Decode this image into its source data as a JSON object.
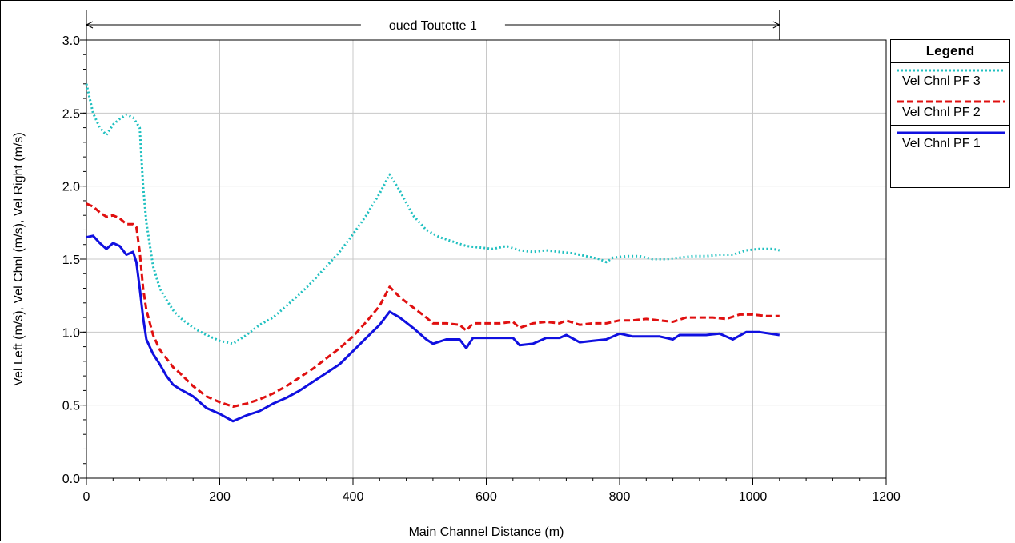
{
  "chart_data": {
    "type": "line",
    "title": "oued Toutette 1",
    "xlabel": "Main Channel Distance (m)",
    "ylabel": "Vel Left (m/s), Vel Chnl (m/s), Vel Right (m/s)",
    "xlim": [
      0,
      1200
    ],
    "ylim": [
      0,
      3.0
    ],
    "xticks": [
      "0",
      "200",
      "400",
      "600",
      "800",
      "1000",
      "1200"
    ],
    "yticks": [
      "0.0",
      "0.5",
      "1.0",
      "1.5",
      "2.0",
      "2.5",
      "3.0"
    ],
    "reach_range": [
      0,
      1040
    ],
    "grid": true,
    "legend_title": "Legend",
    "legend_position": "right",
    "series": [
      {
        "name": "Vel Chnl PF 3",
        "color": "#20c0c0",
        "style": "dotted",
        "x": [
          0,
          10,
          20,
          30,
          40,
          50,
          60,
          70,
          80,
          85,
          90,
          100,
          110,
          120,
          130,
          140,
          160,
          180,
          200,
          220,
          240,
          260,
          280,
          300,
          320,
          340,
          360,
          380,
          400,
          420,
          440,
          455,
          470,
          490,
          510,
          530,
          550,
          570,
          590,
          610,
          630,
          650,
          670,
          690,
          710,
          730,
          750,
          770,
          780,
          790,
          810,
          830,
          850,
          870,
          890,
          910,
          930,
          950,
          970,
          990,
          1010,
          1020,
          1030,
          1040
        ],
        "y": [
          2.7,
          2.5,
          2.4,
          2.35,
          2.42,
          2.46,
          2.49,
          2.47,
          2.4,
          2.0,
          1.75,
          1.45,
          1.3,
          1.22,
          1.15,
          1.1,
          1.03,
          0.98,
          0.94,
          0.92,
          0.98,
          1.05,
          1.1,
          1.18,
          1.26,
          1.35,
          1.45,
          1.55,
          1.67,
          1.8,
          1.95,
          2.08,
          1.97,
          1.8,
          1.7,
          1.65,
          1.62,
          1.59,
          1.58,
          1.57,
          1.59,
          1.56,
          1.55,
          1.56,
          1.55,
          1.54,
          1.52,
          1.5,
          1.48,
          1.51,
          1.52,
          1.52,
          1.5,
          1.5,
          1.51,
          1.52,
          1.52,
          1.53,
          1.53,
          1.56,
          1.57,
          1.57,
          1.57,
          1.56
        ]
      },
      {
        "name": "Vel Chnl PF 2",
        "color": "#e01010",
        "style": "dashed",
        "x": [
          0,
          10,
          20,
          30,
          40,
          50,
          60,
          70,
          75,
          80,
          85,
          90,
          100,
          110,
          120,
          130,
          140,
          160,
          180,
          200,
          220,
          240,
          260,
          280,
          300,
          320,
          340,
          360,
          380,
          400,
          420,
          440,
          455,
          470,
          490,
          510,
          520,
          540,
          560,
          570,
          580,
          600,
          620,
          640,
          650,
          670,
          690,
          710,
          720,
          740,
          760,
          780,
          800,
          820,
          840,
          860,
          880,
          900,
          920,
          940,
          960,
          980,
          1000,
          1020,
          1040
        ],
        "y": [
          1.88,
          1.86,
          1.82,
          1.79,
          1.8,
          1.78,
          1.74,
          1.74,
          1.72,
          1.55,
          1.3,
          1.15,
          0.98,
          0.88,
          0.82,
          0.76,
          0.72,
          0.63,
          0.56,
          0.52,
          0.49,
          0.51,
          0.54,
          0.58,
          0.63,
          0.69,
          0.75,
          0.82,
          0.89,
          0.97,
          1.07,
          1.18,
          1.31,
          1.24,
          1.17,
          1.1,
          1.06,
          1.06,
          1.05,
          1.01,
          1.06,
          1.06,
          1.06,
          1.07,
          1.03,
          1.06,
          1.07,
          1.06,
          1.08,
          1.05,
          1.06,
          1.06,
          1.08,
          1.08,
          1.09,
          1.08,
          1.07,
          1.1,
          1.1,
          1.1,
          1.09,
          1.12,
          1.12,
          1.11,
          1.11
        ]
      },
      {
        "name": "Vel Chnl PF 1",
        "color": "#1010e0",
        "style": "solid",
        "x": [
          0,
          10,
          20,
          30,
          40,
          50,
          60,
          70,
          75,
          80,
          85,
          90,
          100,
          110,
          120,
          130,
          140,
          160,
          180,
          200,
          220,
          240,
          260,
          280,
          300,
          320,
          340,
          360,
          380,
          400,
          420,
          440,
          455,
          470,
          490,
          510,
          520,
          540,
          560,
          570,
          580,
          600,
          620,
          640,
          650,
          670,
          690,
          710,
          720,
          740,
          760,
          780,
          800,
          820,
          840,
          860,
          880,
          890,
          910,
          930,
          950,
          970,
          990,
          1010,
          1040
        ],
        "y": [
          1.65,
          1.66,
          1.61,
          1.57,
          1.61,
          1.59,
          1.53,
          1.55,
          1.48,
          1.3,
          1.1,
          0.95,
          0.85,
          0.78,
          0.7,
          0.64,
          0.61,
          0.56,
          0.48,
          0.44,
          0.39,
          0.43,
          0.46,
          0.51,
          0.55,
          0.6,
          0.66,
          0.72,
          0.78,
          0.87,
          0.96,
          1.05,
          1.14,
          1.1,
          1.03,
          0.95,
          0.92,
          0.95,
          0.95,
          0.89,
          0.96,
          0.96,
          0.96,
          0.96,
          0.91,
          0.92,
          0.96,
          0.96,
          0.98,
          0.93,
          0.94,
          0.95,
          0.99,
          0.97,
          0.97,
          0.97,
          0.95,
          0.98,
          0.98,
          0.98,
          0.99,
          0.95,
          1.0,
          1.0,
          0.98
        ]
      }
    ]
  }
}
